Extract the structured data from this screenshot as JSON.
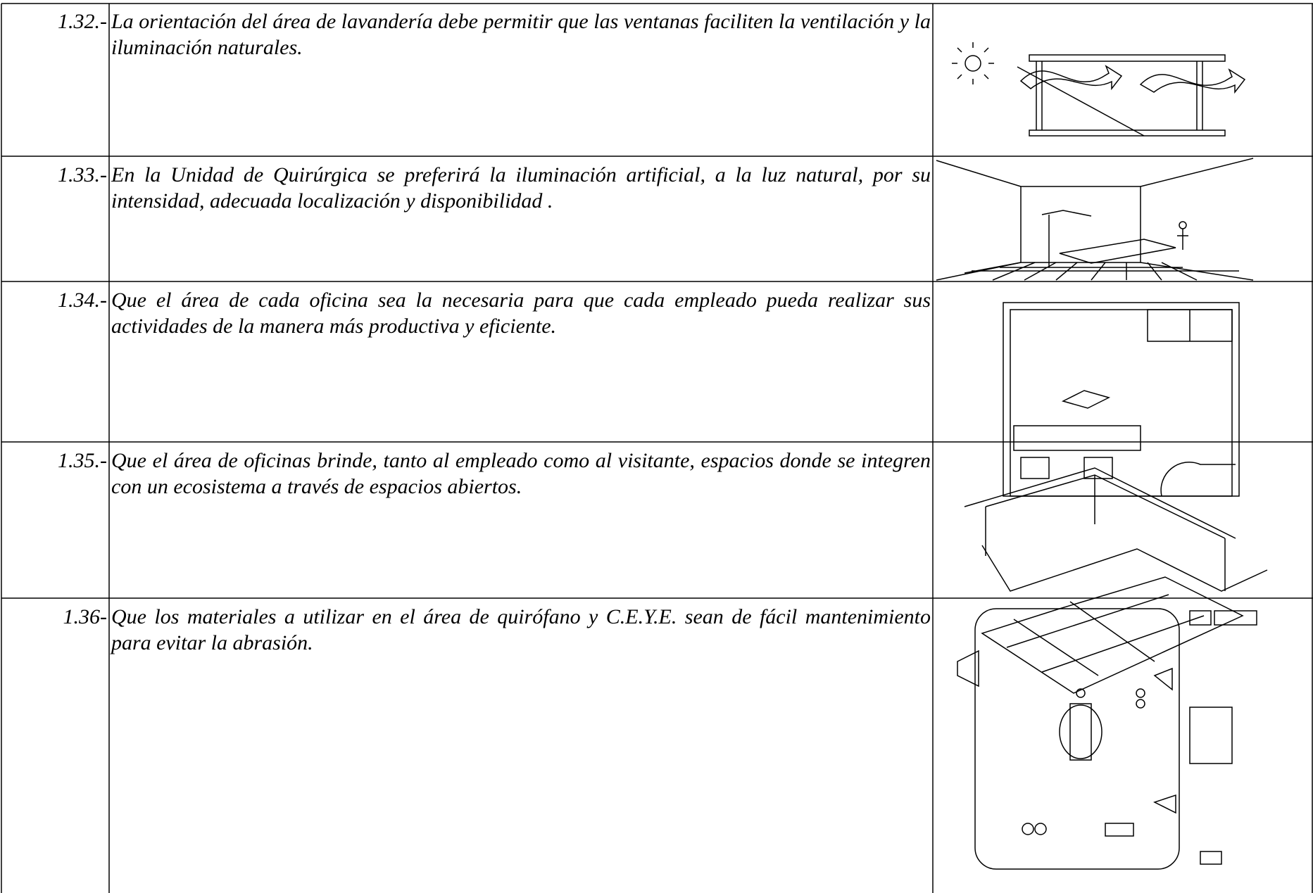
{
  "table": {
    "rows": [
      {
        "number": "1.32.-",
        "text": "La orientación del área de lavandería debe permitir que las ventanas faciliten la ventilación y la iluminación naturales."
      },
      {
        "number": "1.33.-",
        "text": "En la Unidad de Quirúrgica se preferirá la iluminación artificial, a la luz natural, por su intensidad, adecuada localización y disponibilidad ."
      },
      {
        "number": "1.34.-",
        "text": "Que el área de cada oficina sea la necesaria para que cada empleado pueda realizar sus actividades de la manera más productiva y eficiente."
      },
      {
        "number": "1.35.-",
        "text": "Que el área de oficinas brinde, tanto al empleado como al visitante, espacios donde se integren con un ecosistema a través de espacios abiertos."
      },
      {
        "number": "1.36-",
        "text": "Que los materiales a utilizar en el área de quirófano y C.E.Y.E. sean de fácil mantenimiento para evitar la abrasión."
      }
    ]
  }
}
